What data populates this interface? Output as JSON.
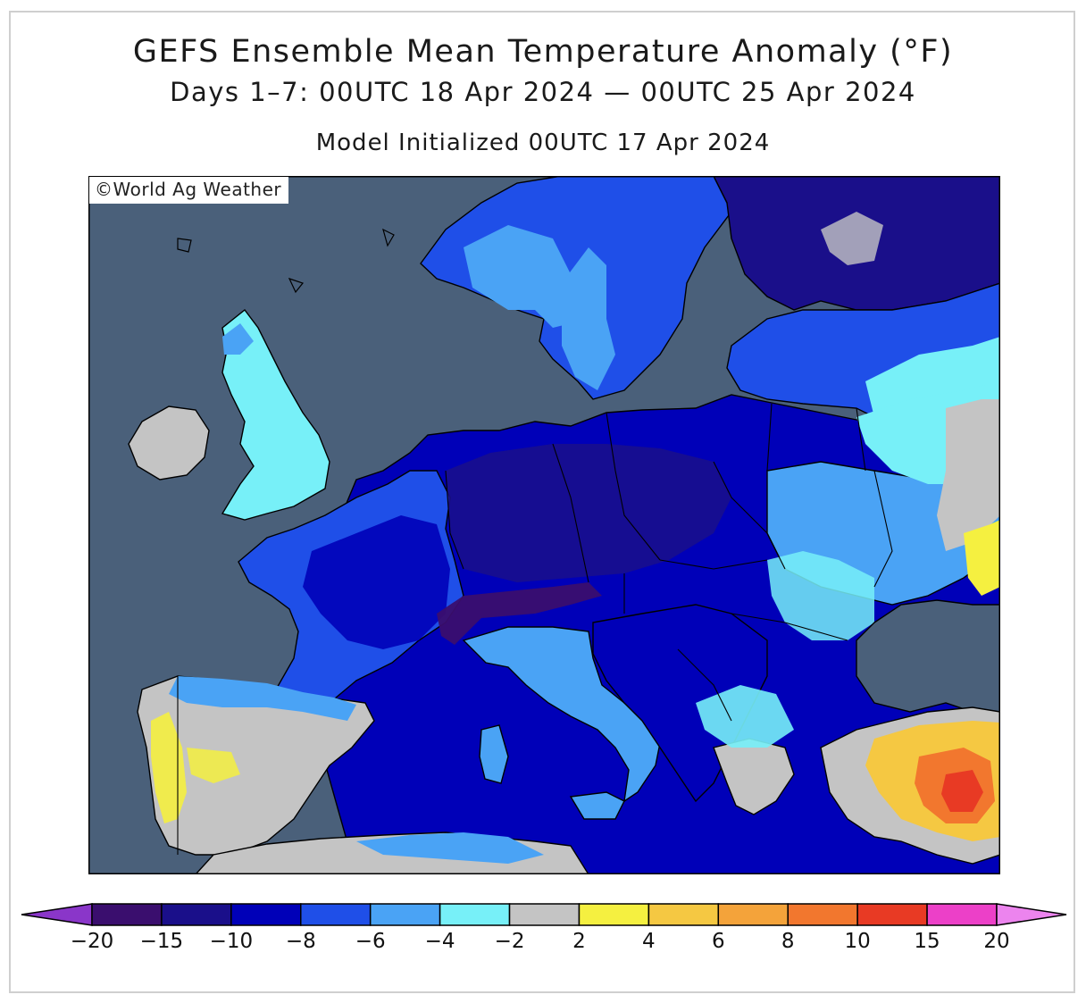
{
  "title": "GEFS Ensemble Mean Temperature Anomaly (°F)",
  "subtitle": "Days 1–7: 00UTC 18 Apr 2024 — 00UTC 25 Apr 2024",
  "init_line": "Model Initialized 00UTC 17 Apr 2024",
  "copyright": "©World Ag Weather",
  "colorbar": {
    "ticks": [
      "−20",
      "−15",
      "−10",
      "−8",
      "−6",
      "−4",
      "−2",
      "2",
      "4",
      "6",
      "8",
      "10",
      "15",
      "20"
    ],
    "colors": [
      "#3a0e6e",
      "#1a0f8a",
      "#0000b8",
      "#1f4fe8",
      "#4aa3f5",
      "#77f0f8",
      "#c4c4c4",
      "#f5f040",
      "#f5c842",
      "#f4a33a",
      "#f2772e",
      "#e83a24",
      "#ec40c8"
    ],
    "under_color": "#8a36c9",
    "over_color": "#ec84ee"
  },
  "colors": {
    "sea": "#4a607a",
    "coast": "#000000"
  }
}
